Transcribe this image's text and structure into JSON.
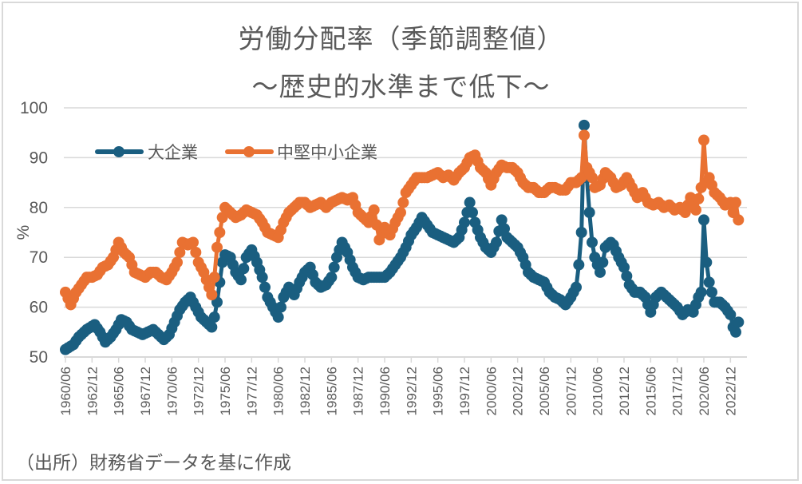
{
  "chart_data": {
    "type": "line",
    "title": "労働分配率（季節調整値）",
    "subtitle": "～歴史的水準まで低下～",
    "xlabel": "",
    "ylabel": "%",
    "ylim": [
      50,
      100
    ],
    "yticks": [
      "50",
      "60",
      "70",
      "80",
      "90",
      "100"
    ],
    "grid": true,
    "legend_position": "top-left",
    "x_start": "1960/06",
    "x_frequency": "quarterly",
    "x_range": [
      "1960/06",
      "2023/09"
    ],
    "xticks": [
      "1960/06",
      "1962/12",
      "1965/06",
      "1967/12",
      "1970/06",
      "1972/12",
      "1975/06",
      "1977/12",
      "1980/06",
      "1982/12",
      "1985/06",
      "1987/12",
      "1990/06",
      "1992/12",
      "1995/06",
      "1997/12",
      "2000/06",
      "2002/12",
      "2005/06",
      "2007/12",
      "2010/06",
      "2012/12",
      "2015/06",
      "2017/12",
      "2020/06",
      "2022/12"
    ],
    "series": [
      {
        "name": "大企業",
        "color": "#1a5e80",
        "points": [
          [
            "1960/06",
            51.5
          ],
          [
            "1961/03",
            52.5
          ],
          [
            "1961/09",
            54
          ],
          [
            "1962/06",
            55.5
          ],
          [
            "1963/03",
            56.5
          ],
          [
            "1963/09",
            55
          ],
          [
            "1964/03",
            53
          ],
          [
            "1964/09",
            54
          ],
          [
            "1965/03",
            55.5
          ],
          [
            "1965/09",
            57.5
          ],
          [
            "1966/03",
            57
          ],
          [
            "1966/09",
            55.5
          ],
          [
            "1967/03",
            55
          ],
          [
            "1967/09",
            54.5
          ],
          [
            "1968/03",
            55
          ],
          [
            "1968/09",
            55.5
          ],
          [
            "1969/03",
            54.5
          ],
          [
            "1969/09",
            53.5
          ],
          [
            "1970/03",
            54.5
          ],
          [
            "1970/09",
            57
          ],
          [
            "1971/03",
            59.5
          ],
          [
            "1971/09",
            61
          ],
          [
            "1972/03",
            62
          ],
          [
            "1972/09",
            60
          ],
          [
            "1973/03",
            58
          ],
          [
            "1973/09",
            57
          ],
          [
            "1974/03",
            56
          ],
          [
            "1974/06",
            58
          ],
          [
            "1974/09",
            61
          ],
          [
            "1975/03",
            69
          ],
          [
            "1975/06",
            70.5
          ],
          [
            "1975/12",
            70
          ],
          [
            "1976/06",
            67
          ],
          [
            "1976/12",
            65.5
          ],
          [
            "1977/06",
            70
          ],
          [
            "1977/12",
            71.5
          ],
          [
            "1978/06",
            69
          ],
          [
            "1978/12",
            66
          ],
          [
            "1979/06",
            62
          ],
          [
            "1979/12",
            60
          ],
          [
            "1980/06",
            58
          ],
          [
            "1980/12",
            62
          ],
          [
            "1981/06",
            64
          ],
          [
            "1981/12",
            62.5
          ],
          [
            "1982/06",
            65
          ],
          [
            "1982/12",
            67
          ],
          [
            "1983/06",
            68
          ],
          [
            "1983/12",
            65
          ],
          [
            "1984/06",
            64
          ],
          [
            "1984/12",
            64.5
          ],
          [
            "1985/06",
            66
          ],
          [
            "1985/12",
            70
          ],
          [
            "1986/06",
            73
          ],
          [
            "1986/12",
            71
          ],
          [
            "1987/06",
            68
          ],
          [
            "1987/12",
            66
          ],
          [
            "1988/06",
            65.5
          ],
          [
            "1988/12",
            66
          ],
          [
            "1989/06",
            66
          ],
          [
            "1989/12",
            66
          ],
          [
            "1990/06",
            66
          ],
          [
            "1990/12",
            67
          ],
          [
            "1991/06",
            68.5
          ],
          [
            "1991/12",
            70
          ],
          [
            "1992/06",
            72
          ],
          [
            "1992/12",
            74.5
          ],
          [
            "1993/06",
            76
          ],
          [
            "1993/12",
            78
          ],
          [
            "1994/06",
            76.5
          ],
          [
            "1994/12",
            75
          ],
          [
            "1995/06",
            74.5
          ],
          [
            "1995/12",
            74
          ],
          [
            "1996/06",
            73.5
          ],
          [
            "1996/12",
            73
          ],
          [
            "1997/06",
            74
          ],
          [
            "1997/12",
            77
          ],
          [
            "1998/03",
            79
          ],
          [
            "1998/06",
            81
          ],
          [
            "1998/12",
            77
          ],
          [
            "1999/06",
            74
          ],
          [
            "1999/12",
            72
          ],
          [
            "2000/06",
            71
          ],
          [
            "2000/12",
            73
          ],
          [
            "2001/06",
            77.5
          ],
          [
            "2001/12",
            74
          ],
          [
            "2002/06",
            73
          ],
          [
            "2002/12",
            72
          ],
          [
            "2003/06",
            70
          ],
          [
            "2003/12",
            67
          ],
          [
            "2004/06",
            66
          ],
          [
            "2004/12",
            65.5
          ],
          [
            "2005/06",
            65
          ],
          [
            "2005/12",
            63
          ],
          [
            "2006/06",
            62
          ],
          [
            "2006/12",
            61.5
          ],
          [
            "2007/06",
            60.5
          ],
          [
            "2007/12",
            62
          ],
          [
            "2008/06",
            64
          ],
          [
            "2008/09",
            68.5
          ],
          [
            "2008/12",
            75
          ],
          [
            "2009/03",
            96.5
          ],
          [
            "2009/06",
            86
          ],
          [
            "2009/09",
            79
          ],
          [
            "2009/12",
            73
          ],
          [
            "2010/03",
            70
          ],
          [
            "2010/06",
            68.5
          ],
          [
            "2010/09",
            67
          ],
          [
            "2010/12",
            69
          ],
          [
            "2011/03",
            72
          ],
          [
            "2011/09",
            73
          ],
          [
            "2011/12",
            72.5
          ],
          [
            "2012/06",
            70
          ],
          [
            "2012/12",
            68
          ],
          [
            "2013/06",
            64.5
          ],
          [
            "2013/12",
            63
          ],
          [
            "2014/06",
            63
          ],
          [
            "2014/12",
            62
          ],
          [
            "2015/06",
            59
          ],
          [
            "2015/12",
            62
          ],
          [
            "2016/06",
            63
          ],
          [
            "2016/12",
            62
          ],
          [
            "2017/06",
            61
          ],
          [
            "2017/12",
            60
          ],
          [
            "2018/06",
            58.5
          ],
          [
            "2018/12",
            59.5
          ],
          [
            "2019/06",
            59
          ],
          [
            "2019/12",
            62
          ],
          [
            "2020/03",
            63
          ],
          [
            "2020/06",
            77.5
          ],
          [
            "2020/09",
            69
          ],
          [
            "2020/12",
            65
          ],
          [
            "2021/06",
            61
          ],
          [
            "2021/12",
            61
          ],
          [
            "2022/06",
            60
          ],
          [
            "2022/12",
            58.5
          ],
          [
            "2023/03",
            56
          ],
          [
            "2023/06",
            55
          ],
          [
            "2023/09",
            57
          ]
        ]
      },
      {
        "name": "中堅中小企業",
        "color": "#e97132",
        "points": [
          [
            "1960/06",
            63
          ],
          [
            "1960/12",
            60.5
          ],
          [
            "1961/06",
            63
          ],
          [
            "1961/12",
            64.5
          ],
          [
            "1962/06",
            66
          ],
          [
            "1962/12",
            66
          ],
          [
            "1963/06",
            66.5
          ],
          [
            "1963/12",
            68
          ],
          [
            "1964/06",
            68.5
          ],
          [
            "1964/12",
            70
          ],
          [
            "1965/06",
            73
          ],
          [
            "1965/12",
            71
          ],
          [
            "1966/06",
            70
          ],
          [
            "1966/12",
            67
          ],
          [
            "1967/06",
            66.5
          ],
          [
            "1967/12",
            66
          ],
          [
            "1968/06",
            67
          ],
          [
            "1968/12",
            67
          ],
          [
            "1969/06",
            66
          ],
          [
            "1969/12",
            65.5
          ],
          [
            "1970/06",
            67
          ],
          [
            "1970/12",
            69
          ],
          [
            "1971/06",
            73
          ],
          [
            "1971/12",
            72.5
          ],
          [
            "1972/06",
            73
          ],
          [
            "1972/12",
            69
          ],
          [
            "1973/06",
            67
          ],
          [
            "1973/12",
            64
          ],
          [
            "1974/03",
            62.5
          ],
          [
            "1974/06",
            66
          ],
          [
            "1974/09",
            72
          ],
          [
            "1975/03",
            78
          ],
          [
            "1975/06",
            80
          ],
          [
            "1975/12",
            79
          ],
          [
            "1976/06",
            78
          ],
          [
            "1976/12",
            78.5
          ],
          [
            "1977/06",
            79.5
          ],
          [
            "1977/12",
            79
          ],
          [
            "1978/06",
            78.5
          ],
          [
            "1978/12",
            77
          ],
          [
            "1979/06",
            75
          ],
          [
            "1979/12",
            74.5
          ],
          [
            "1980/06",
            74
          ],
          [
            "1980/12",
            77
          ],
          [
            "1981/06",
            79
          ],
          [
            "1981/12",
            80
          ],
          [
            "1982/06",
            81
          ],
          [
            "1982/12",
            81
          ],
          [
            "1983/06",
            80
          ],
          [
            "1983/12",
            80.5
          ],
          [
            "1984/06",
            81
          ],
          [
            "1984/12",
            80
          ],
          [
            "1985/06",
            81
          ],
          [
            "1985/12",
            81.5
          ],
          [
            "1986/06",
            82
          ],
          [
            "1986/12",
            81.5
          ],
          [
            "1987/06",
            82
          ],
          [
            "1987/12",
            79
          ],
          [
            "1988/06",
            78
          ],
          [
            "1988/12",
            77
          ],
          [
            "1989/06",
            79.5
          ],
          [
            "1989/12",
            73.5
          ],
          [
            "1990/06",
            76
          ],
          [
            "1990/12",
            74.5
          ],
          [
            "1991/06",
            77
          ],
          [
            "1991/12",
            79
          ],
          [
            "1992/06",
            83
          ],
          [
            "1992/12",
            84.5
          ],
          [
            "1993/06",
            86
          ],
          [
            "1993/12",
            86
          ],
          [
            "1994/06",
            86
          ],
          [
            "1994/12",
            86.5
          ],
          [
            "1995/06",
            87
          ],
          [
            "1995/12",
            86
          ],
          [
            "1996/06",
            86.5
          ],
          [
            "1996/12",
            85.5
          ],
          [
            "1997/06",
            87
          ],
          [
            "1997/12",
            88
          ],
          [
            "1998/06",
            90
          ],
          [
            "1998/12",
            90.5
          ],
          [
            "1999/06",
            88
          ],
          [
            "1999/12",
            87
          ],
          [
            "2000/06",
            84.5
          ],
          [
            "2000/12",
            87
          ],
          [
            "2001/06",
            88.5
          ],
          [
            "2001/12",
            88
          ],
          [
            "2002/06",
            88
          ],
          [
            "2002/12",
            87
          ],
          [
            "2003/06",
            85
          ],
          [
            "2003/12",
            84
          ],
          [
            "2004/06",
            84
          ],
          [
            "2004/12",
            83
          ],
          [
            "2005/06",
            83
          ],
          [
            "2005/12",
            84
          ],
          [
            "2006/06",
            84
          ],
          [
            "2006/12",
            83.5
          ],
          [
            "2007/06",
            83.5
          ],
          [
            "2007/12",
            85
          ],
          [
            "2008/06",
            85
          ],
          [
            "2008/12",
            86
          ],
          [
            "2009/03",
            94.5
          ],
          [
            "2009/06",
            88
          ],
          [
            "2009/09",
            87
          ],
          [
            "2009/12",
            86
          ],
          [
            "2010/03",
            84
          ],
          [
            "2010/09",
            84.5
          ],
          [
            "2011/03",
            87
          ],
          [
            "2011/09",
            86
          ],
          [
            "2012/03",
            84
          ],
          [
            "2012/09",
            84.5
          ],
          [
            "2013/03",
            86
          ],
          [
            "2013/09",
            84
          ],
          [
            "2014/03",
            82
          ],
          [
            "2014/09",
            83
          ],
          [
            "2015/03",
            81
          ],
          [
            "2015/09",
            80.5
          ],
          [
            "2016/03",
            81
          ],
          [
            "2016/09",
            80
          ],
          [
            "2017/03",
            80.5
          ],
          [
            "2017/09",
            79.5
          ],
          [
            "2018/03",
            80
          ],
          [
            "2018/09",
            79
          ],
          [
            "2019/03",
            82
          ],
          [
            "2019/09",
            79.5
          ],
          [
            "2020/03",
            84
          ],
          [
            "2020/06",
            93.5
          ],
          [
            "2020/09",
            85
          ],
          [
            "2020/12",
            86
          ],
          [
            "2021/06",
            83
          ],
          [
            "2021/12",
            82
          ],
          [
            "2022/06",
            80.5
          ],
          [
            "2022/12",
            81
          ],
          [
            "2023/03",
            79
          ],
          [
            "2023/06",
            81
          ],
          [
            "2023/09",
            77.5
          ]
        ]
      }
    ]
  },
  "source_note": "（出所）財務省データを基に作成"
}
